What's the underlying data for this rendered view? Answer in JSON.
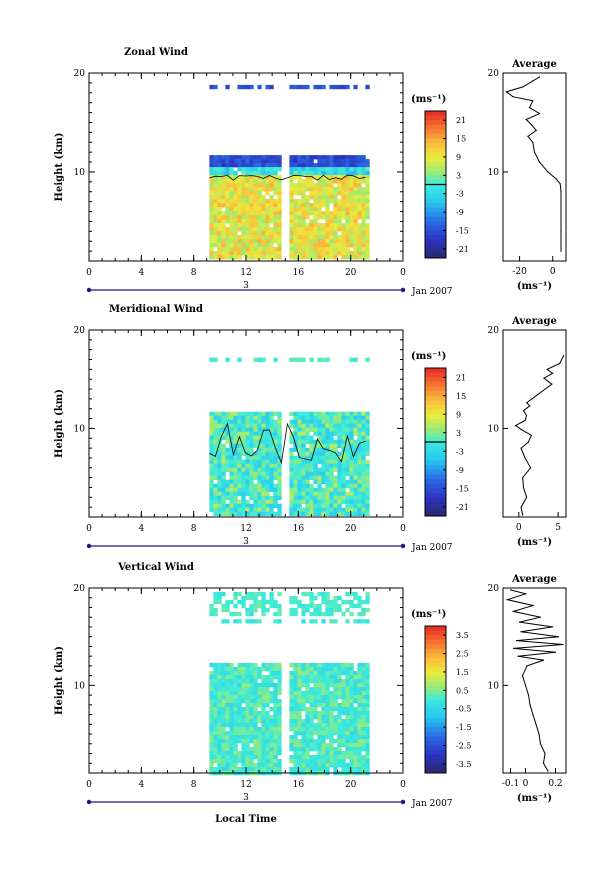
{
  "chart_data": [
    {
      "type": "heatmap",
      "title": "Zonal Wind",
      "ylabel": "Height (km)",
      "x_ticks": [
        "0",
        "4",
        "8",
        "12",
        "16",
        "20",
        "0"
      ],
      "y_ticks": [
        "10",
        "20"
      ],
      "xlim": [
        0,
        24
      ],
      "ylim": [
        1,
        20
      ],
      "date_marker": "3",
      "date_label": "Jan 2007",
      "colorbar": {
        "unit": "(ms⁻¹)",
        "ticks": [
          "21",
          "15",
          "9",
          "3",
          "-3",
          "-9",
          "-15",
          "-21"
        ],
        "range": [
          -24,
          24
        ]
      },
      "data_span": {
        "start_hour": 9.2,
        "end_hour": 21.2,
        "gap_hours": [
          15.0,
          15.3
        ],
        "top_km": 11.7,
        "bottom_km": 1.2
      },
      "average": {
        "title": "Average",
        "xlabel": "(ms⁻¹)",
        "x_ticks": [
          "-20",
          "0"
        ],
        "xlim": [
          -30,
          8
        ],
        "points": [
          [
            5,
            2
          ],
          [
            5,
            4
          ],
          [
            5,
            6
          ],
          [
            5,
            8
          ],
          [
            4.5,
            8.8
          ],
          [
            2,
            9.3
          ],
          [
            -3,
            10
          ],
          [
            -8,
            11
          ],
          [
            -11,
            12
          ],
          [
            -12,
            13
          ],
          [
            -15,
            13.6
          ],
          [
            -10,
            14.2
          ],
          [
            -13,
            14.8
          ],
          [
            -16,
            15.3
          ],
          [
            -8,
            15.9
          ],
          [
            -14,
            16.5
          ],
          [
            -12,
            17.2
          ],
          [
            -24,
            17.6
          ],
          [
            -28,
            18.1
          ],
          [
            -18,
            18.6
          ],
          [
            -12,
            19.2
          ],
          [
            -8,
            19.6
          ]
        ]
      }
    },
    {
      "type": "heatmap",
      "title": "Meridional Wind",
      "ylabel": "Height (km)",
      "x_ticks": [
        "0",
        "4",
        "8",
        "12",
        "16",
        "20",
        "0"
      ],
      "y_ticks": [
        "10",
        "20"
      ],
      "xlim": [
        0,
        24
      ],
      "ylim": [
        1,
        20
      ],
      "date_marker": "3",
      "date_label": "Jan 2007",
      "colorbar": {
        "unit": "(ms⁻¹)",
        "ticks": [
          "21",
          "15",
          "9",
          "3",
          "-3",
          "-9",
          "-15",
          "-21"
        ],
        "range": [
          -24,
          24
        ]
      },
      "data_span": {
        "start_hour": 9.2,
        "end_hour": 21.2,
        "gap_hours": [
          15.0,
          15.3
        ],
        "top_km": 11.7,
        "bottom_km": 1.2
      },
      "average": {
        "title": "Average",
        "xlabel": "(ms⁻¹)",
        "x_ticks": [
          "0",
          "5"
        ],
        "xlim": [
          -2,
          6
        ],
        "points": [
          [
            0.5,
            1.2
          ],
          [
            0.3,
            2
          ],
          [
            1,
            3
          ],
          [
            0.6,
            4
          ],
          [
            0.5,
            5
          ],
          [
            1.5,
            6
          ],
          [
            0.8,
            7
          ],
          [
            0.3,
            8
          ],
          [
            1.2,
            8.6
          ],
          [
            1.6,
            9.3
          ],
          [
            0.3,
            9.9
          ],
          [
            -0.4,
            10.3
          ],
          [
            0.8,
            10.8
          ],
          [
            1.0,
            11.3
          ],
          [
            0.6,
            11.8
          ],
          [
            1.4,
            12.3
          ],
          [
            1.0,
            12.6
          ],
          [
            4.2,
            14.5
          ],
          [
            3.2,
            15.1
          ],
          [
            4.3,
            15.6
          ],
          [
            3.6,
            16.0
          ],
          [
            5.2,
            16.6
          ],
          [
            5.7,
            17.4
          ]
        ]
      }
    },
    {
      "type": "heatmap",
      "title": "Vertical Wind",
      "ylabel": "Height (km)",
      "xlabel": "Local Time",
      "x_ticks": [
        "0",
        "4",
        "8",
        "12",
        "16",
        "20",
        "0"
      ],
      "y_ticks": [
        "10",
        "20"
      ],
      "xlim": [
        0,
        24
      ],
      "ylim": [
        1,
        20
      ],
      "date_marker": "3",
      "date_label": "Jan 2007",
      "colorbar": {
        "unit": "(ms⁻¹)",
        "ticks": [
          "3.5",
          "2.5",
          "1.5",
          "0.5",
          "-0.5",
          "-1.5",
          "-2.5",
          "-3.5"
        ],
        "range": [
          -4,
          4
        ]
      },
      "data_span": {
        "start_hour": 9.2,
        "end_hour": 21.2,
        "gap_hours": [
          15.0,
          15.3
        ],
        "top_km": 12.3,
        "bottom_km": 1.2
      },
      "average": {
        "title": "Average",
        "xlabel": "(ms⁻¹)",
        "x_ticks": [
          "-0.1",
          "0",
          "0.2"
        ],
        "xlim": [
          -0.15,
          0.27
        ],
        "points": [
          [
            0.15,
            1.2
          ],
          [
            0.12,
            2
          ],
          [
            0.13,
            3
          ],
          [
            0.1,
            4
          ],
          [
            0.09,
            5
          ],
          [
            0.07,
            6
          ],
          [
            0.05,
            7
          ],
          [
            0.03,
            8
          ],
          [
            0.02,
            9
          ],
          [
            0.0,
            10
          ],
          [
            -0.02,
            11
          ],
          [
            0.01,
            12
          ],
          [
            0.12,
            12.6
          ],
          [
            -0.05,
            13.0
          ],
          [
            0.2,
            13.4
          ],
          [
            -0.08,
            13.8
          ],
          [
            0.25,
            14.2
          ],
          [
            -0.06,
            14.6
          ],
          [
            0.22,
            15.0
          ],
          [
            -0.03,
            15.5
          ],
          [
            0.18,
            16.0
          ],
          [
            -0.04,
            16.5
          ],
          [
            0.1,
            17.0
          ],
          [
            -0.08,
            17.6
          ],
          [
            0.05,
            18.2
          ],
          [
            -0.12,
            18.8
          ],
          [
            0.0,
            19.4
          ],
          [
            -0.1,
            19.8
          ]
        ]
      }
    }
  ]
}
